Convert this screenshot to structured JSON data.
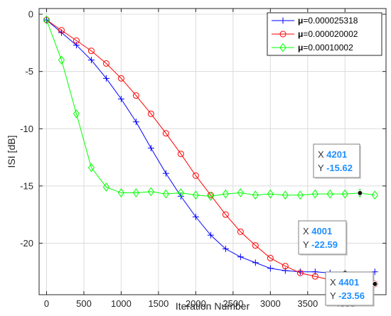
{
  "chart_data": {
    "type": "line",
    "title": "",
    "xlabel": "Iteration Number",
    "ylabel": "ISI [dB]",
    "xlim": [
      -100,
      4550
    ],
    "ylim": [
      -24.5,
      0.5
    ],
    "xticks": [
      0,
      500,
      1000,
      1500,
      2000,
      2500,
      3000,
      3500,
      4000
    ],
    "yticks": [
      0,
      -5,
      -10,
      -15,
      -20
    ],
    "grid": true,
    "legend_position": "top-right",
    "series": [
      {
        "name_prefix": "μ",
        "name_value": "=0.000025318",
        "color": "#0000ff",
        "marker": "plus",
        "x": [
          0,
          200,
          400,
          600,
          800,
          1000,
          1200,
          1400,
          1600,
          1800,
          2000,
          2200,
          2400,
          2600,
          2800,
          3000,
          3200,
          3400,
          3600,
          3800,
          4000,
          4200,
          4400
        ],
        "y": [
          -0.5,
          -1.6,
          -2.7,
          -4.0,
          -5.6,
          -7.4,
          -9.4,
          -11.7,
          -13.9,
          -15.9,
          -17.7,
          -19.3,
          -20.5,
          -21.2,
          -21.7,
          -22.2,
          -22.4,
          -22.5,
          -22.5,
          -22.6,
          -22.59,
          -22.9,
          -22.5
        ]
      },
      {
        "name_prefix": "μ",
        "name_value": "=0.000020002",
        "color": "#ff0000",
        "marker": "circle",
        "x": [
          0,
          200,
          400,
          600,
          800,
          1000,
          1200,
          1400,
          1600,
          1800,
          2000,
          2200,
          2400,
          2600,
          2800,
          3000,
          3200,
          3400,
          3600,
          3800,
          4000,
          4200,
          4400
        ],
        "y": [
          -0.5,
          -1.4,
          -2.3,
          -3.2,
          -4.3,
          -5.6,
          -7.1,
          -8.7,
          -10.4,
          -12.2,
          -14.1,
          -15.8,
          -17.5,
          -19.0,
          -20.2,
          -21.3,
          -22.0,
          -22.6,
          -22.9,
          -23.2,
          -23.4,
          -23.5,
          -23.56
        ]
      },
      {
        "name_prefix": "μ",
        "name_value": "=0.00010002",
        "color": "#00ff00",
        "marker": "diamond",
        "x": [
          0,
          200,
          400,
          600,
          800,
          1000,
          1200,
          1400,
          1600,
          1800,
          2000,
          2200,
          2400,
          2600,
          2800,
          3000,
          3200,
          3400,
          3600,
          3800,
          4000,
          4200,
          4400
        ],
        "y": [
          -0.5,
          -4.0,
          -8.7,
          -13.4,
          -15.1,
          -15.6,
          -15.6,
          -15.5,
          -15.7,
          -15.6,
          -15.8,
          -15.9,
          -15.7,
          -15.6,
          -15.8,
          -15.7,
          -15.8,
          -15.8,
          -15.7,
          -15.7,
          -15.7,
          -15.62,
          -15.8
        ]
      }
    ],
    "datatips": [
      {
        "x_key": "X",
        "x_value": "4201",
        "y_key": "Y",
        "y_value": "-15.62",
        "px": 4201,
        "py": -15.62,
        "side": "left"
      },
      {
        "x_key": "X",
        "x_value": "4001",
        "y_key": "Y",
        "y_value": "-22.59",
        "px": 4001,
        "py": -22.59,
        "side": "left"
      },
      {
        "x_key": "X",
        "x_value": "4401",
        "y_key": "Y",
        "y_value": "-23.56",
        "px": 4401,
        "py": -23.56,
        "side": "below-left"
      }
    ]
  }
}
